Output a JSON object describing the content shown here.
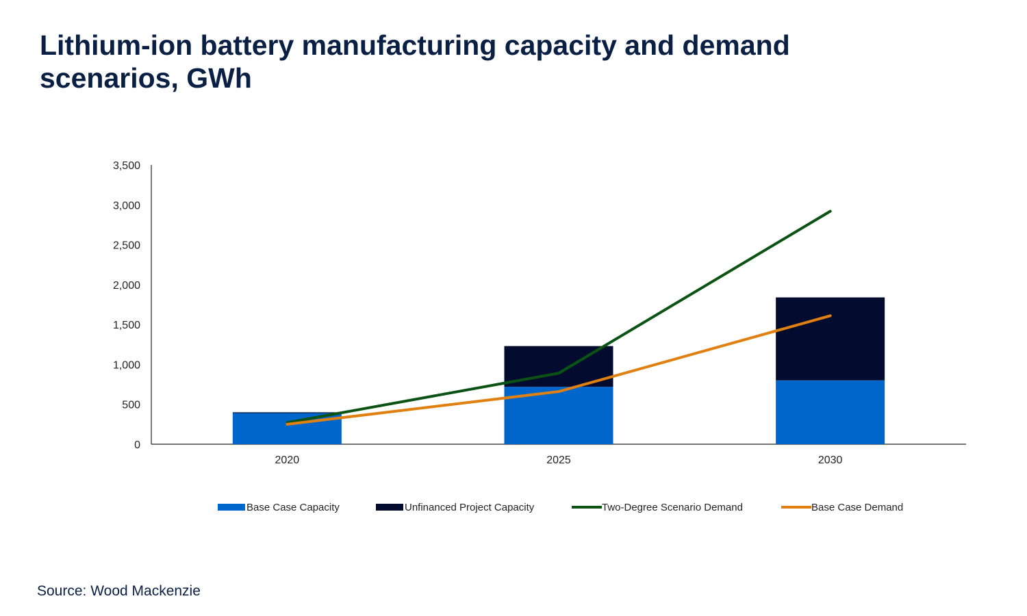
{
  "title": "Lithium-ion battery manufacturing capacity and demand scenarios, GWh",
  "source": "Source: Wood Mackenzie",
  "colors": {
    "base_case_capacity": "#0066cc",
    "unfinanced_capacity": "#030c2e",
    "two_degree_demand": "#0b5215",
    "base_case_demand": "#e08010",
    "title": "#0a1f44",
    "axis": "#222222"
  },
  "chart_data": {
    "type": "bar",
    "stacked": true,
    "title": "Lithium-ion battery manufacturing capacity and demand scenarios, GWh",
    "xlabel": "",
    "ylabel": "",
    "categories": [
      "2020",
      "2025",
      "2030"
    ],
    "ylim": [
      0,
      3500
    ],
    "yticks": [
      0,
      500,
      1000,
      1500,
      2000,
      2500,
      3000,
      3500
    ],
    "ytick_labels": [
      "0",
      "500",
      "1,000",
      "1,500",
      "2,000",
      "2,500",
      "3,000",
      "3,500"
    ],
    "grid": false,
    "legend_position": "bottom",
    "series": [
      {
        "name": "Base Case Capacity",
        "kind": "bar",
        "values": [
          390,
          720,
          800
        ]
      },
      {
        "name": "Unfinanced Project Capacity",
        "kind": "bar",
        "values": [
          10,
          510,
          1040
        ]
      },
      {
        "name": "Two-Degree Scenario Demand",
        "kind": "line",
        "values": [
          270,
          890,
          2920
        ]
      },
      {
        "name": "Base Case Demand",
        "kind": "line",
        "values": [
          250,
          660,
          1610
        ]
      }
    ]
  }
}
